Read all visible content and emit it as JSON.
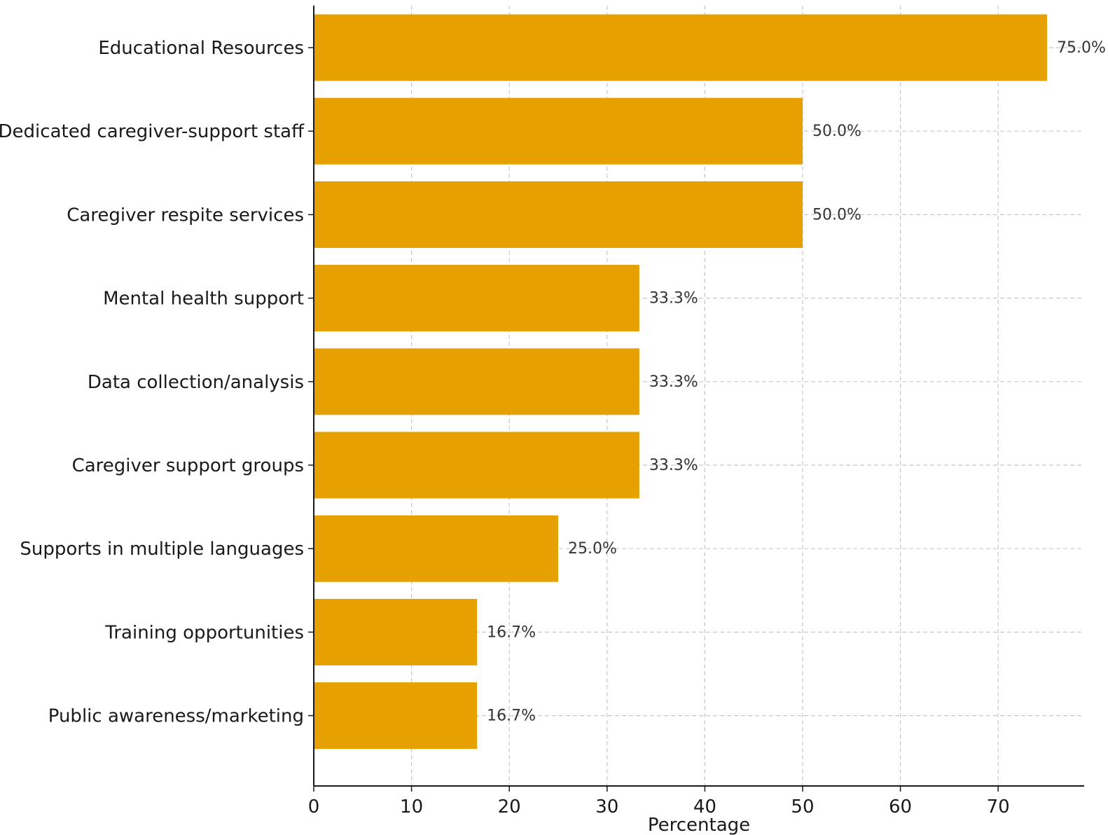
{
  "chart_data": {
    "type": "bar",
    "orientation": "horizontal",
    "categories": [
      "Educational Resources",
      "Dedicated caregiver-support staff",
      "Caregiver respite services",
      "Mental health support",
      "Data collection/analysis",
      "Caregiver support groups",
      "Supports in multiple languages",
      "Training opportunities",
      "Public awareness/marketing"
    ],
    "values": [
      75.0,
      50.0,
      50.0,
      33.3,
      33.3,
      33.3,
      25.0,
      16.7,
      16.7
    ],
    "value_labels": [
      "75.0%",
      "50.0%",
      "50.0%",
      "33.3%",
      "33.3%",
      "33.3%",
      "25.0%",
      "16.7%",
      "16.7%"
    ],
    "title": "",
    "xlabel": "Percentage",
    "ylabel": "",
    "xlim": [
      0,
      78.8
    ],
    "xticks": [
      0,
      10,
      20,
      30,
      40,
      50,
      60,
      70
    ],
    "grid": true,
    "bar_color": "#e6a000"
  }
}
